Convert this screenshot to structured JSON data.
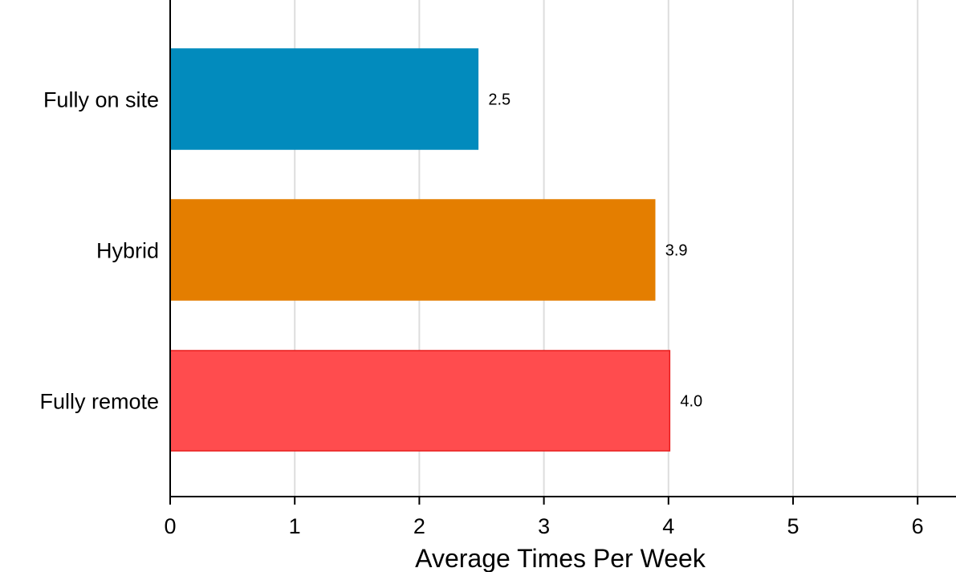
{
  "chart_data": {
    "type": "bar",
    "orientation": "horizontal",
    "categories": [
      "Fully on site",
      "Hybrid",
      "Fully remote"
    ],
    "values": [
      2.47,
      3.89,
      4.01
    ],
    "value_labels": [
      "2.5",
      "3.9",
      "4.0"
    ],
    "colors": [
      "#028bbd",
      "#e47e00",
      "#ff4c4e"
    ],
    "edge_colors": [
      "#028bbd",
      "#e47e00",
      "#e81c1c"
    ],
    "xlabel": "Average Times Per Week",
    "ylabel": "",
    "xlim": [
      0,
      6.2
    ],
    "xticks": [
      0,
      1,
      2,
      3,
      4,
      5,
      6
    ],
    "xtick_labels": [
      "0",
      "1",
      "2",
      "3",
      "4",
      "5",
      "6"
    ],
    "grid": "vertical",
    "grid_color": "#dddddd",
    "legend": "none"
  }
}
